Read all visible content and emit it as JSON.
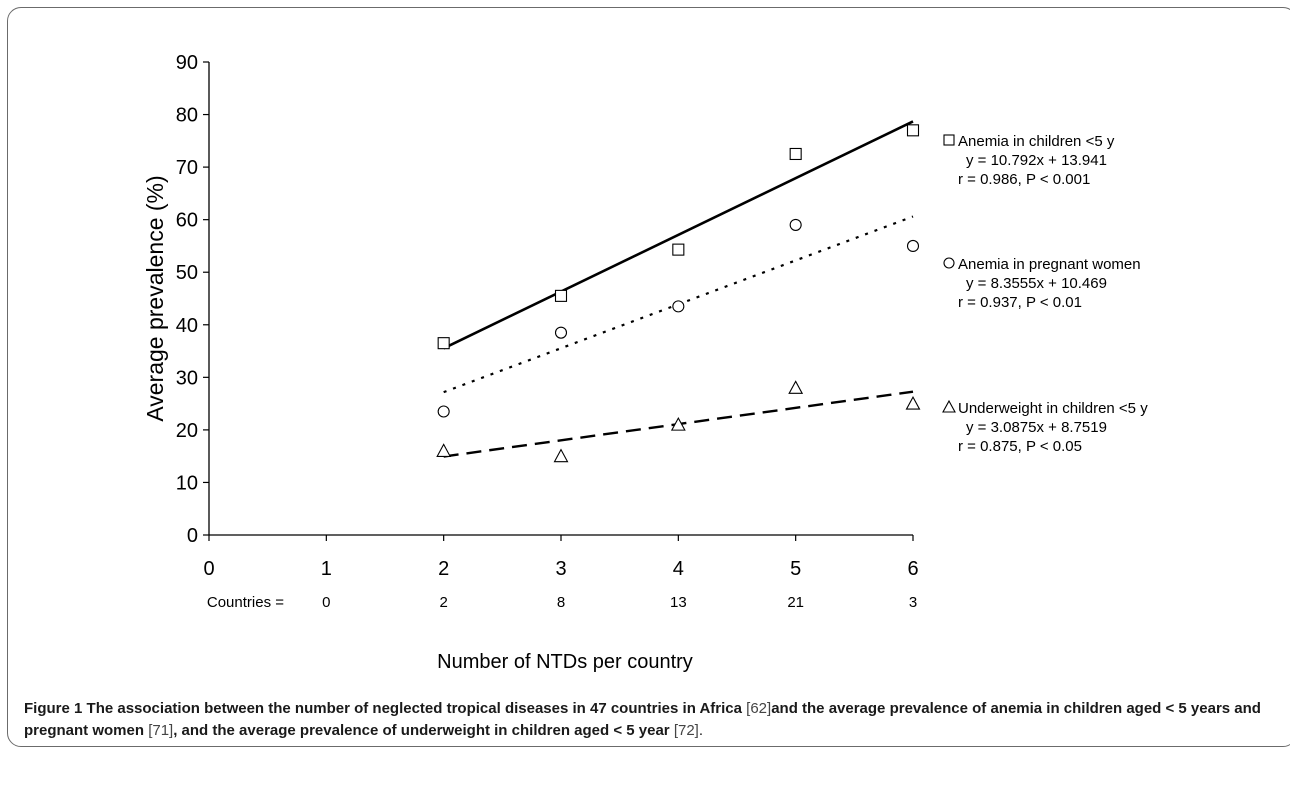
{
  "chart_data": {
    "type": "scatter",
    "ylabel": "Average prevalence (%)",
    "xlabel": "Number of NTDs per country",
    "xlim": [
      0,
      6
    ],
    "ylim": [
      0,
      90
    ],
    "x_ticks": [
      "0",
      "1",
      "2",
      "3",
      "4",
      "5",
      "6"
    ],
    "y_ticks": [
      "0",
      "10",
      "20",
      "30",
      "40",
      "50",
      "60",
      "70",
      "80",
      "90"
    ],
    "grid": false,
    "countries_label": "Countries =",
    "countries": [
      {
        "x": 1,
        "value": "0"
      },
      {
        "x": 2,
        "value": "2"
      },
      {
        "x": 3,
        "value": "8"
      },
      {
        "x": 4,
        "value": "13"
      },
      {
        "x": 5,
        "value": "21"
      },
      {
        "x": 6,
        "value": "3"
      }
    ],
    "series": [
      {
        "name": "Anemia in children <5 y",
        "marker": "square",
        "line_style": "solid",
        "x": [
          2,
          3,
          4,
          5,
          6
        ],
        "values": [
          36.5,
          45.5,
          54.3,
          72.5,
          77
        ],
        "fit": {
          "slope": 10.792,
          "intercept": 13.941,
          "x_range": [
            2,
            6
          ]
        },
        "equation": "y = 10.792x + 13.941",
        "stats": "r = 0.986, P < 0.001"
      },
      {
        "name": "Anemia in pregnant women",
        "marker": "circle",
        "line_style": "dotted",
        "x": [
          2,
          3,
          4,
          5,
          6
        ],
        "values": [
          23.5,
          38.5,
          43.5,
          59,
          55
        ],
        "fit": {
          "slope": 8.3555,
          "intercept": 10.469,
          "x_range": [
            2,
            6
          ]
        },
        "equation": "y = 8.3555x + 10.469",
        "stats": "r = 0.937, P < 0.01"
      },
      {
        "name": "Underweight in children <5 y",
        "marker": "triangle",
        "line_style": "dashed",
        "x": [
          2,
          3,
          4,
          5,
          6
        ],
        "values": [
          16,
          15,
          21,
          28,
          25
        ],
        "fit": {
          "slope": 3.0875,
          "intercept": 8.7519,
          "x_range": [
            2,
            6
          ]
        },
        "equation": "y = 3.0875x + 8.7519",
        "stats": "r = 0.875, P < 0.05"
      }
    ]
  },
  "caption": {
    "figure_label": "Figure 1",
    "part1": "The association between the number of neglected tropical diseases in 47 countries in Africa",
    "ref1": "[62]",
    "part2": "and the average prevalence of anemia in children aged < 5 years and pregnant women",
    "ref2": "[71]",
    "part3": ", and the average prevalence of underweight in children aged < 5 year",
    "ref3": "[72]",
    "end": "."
  }
}
